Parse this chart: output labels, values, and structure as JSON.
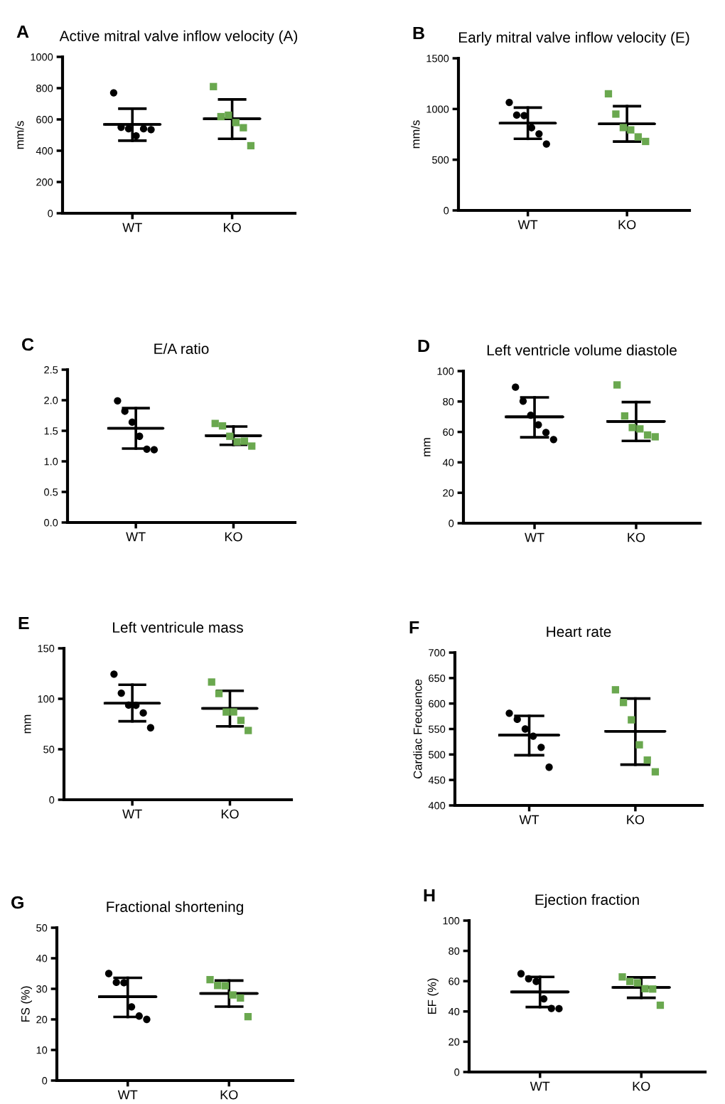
{
  "chart_data": [
    {
      "type": "scatter",
      "title": "Active mitral valve inflow velocity (A)",
      "ylabel": "mm/s",
      "annotations": [
        "A"
      ],
      "categories": [
        "WT",
        "KO"
      ],
      "ylim": [
        0,
        1000
      ],
      "yticks": [
        0,
        200,
        400,
        600,
        800,
        1000
      ],
      "legend": false,
      "series": [
        {
          "color": "#000000",
          "marker": "circle",
          "x": [
            "WT",
            "WT",
            "WT",
            "WT",
            "WT",
            "WT"
          ],
          "values": [
            770,
            550,
            540,
            495,
            540,
            535
          ]
        },
        {
          "color": "#6aa84f",
          "marker": "square",
          "x": [
            "KO",
            "KO",
            "KO",
            "KO",
            "KO",
            "KO"
          ],
          "values": [
            810,
            618,
            627,
            580,
            547,
            432
          ]
        },
        {
          "type": "box",
          "color": "#000000",
          "boxes": [
            {
              "low": 464,
              "q1": 568,
              "median": 568,
              "q3": 568,
              "high": 669
            },
            {
              "low": 476,
              "q1": 604,
              "median": 604,
              "q3": 604,
              "high": 728
            }
          ]
        }
      ]
    },
    {
      "type": "scatter",
      "title": "Early mitral valve inflow velocity (E)",
      "ylabel": "mm/s",
      "annotations": [
        "B"
      ],
      "categories": [
        "WT",
        "KO"
      ],
      "ylim": [
        0,
        1500
      ],
      "yticks": [
        0,
        500,
        1000,
        1500
      ],
      "grid": false,
      "legend": false,
      "series": [
        {
          "color": "#000000",
          "marker": "circle",
          "x": [
            "WT",
            "WT",
            "WT",
            "WT",
            "WT",
            "WT"
          ],
          "values": [
            1065,
            940,
            935,
            815,
            755,
            655
          ]
        },
        {
          "color": "#6aa84f",
          "marker": "square",
          "x": [
            "KO",
            "KO",
            "KO",
            "KO",
            "KO",
            "KO"
          ],
          "values": [
            1150,
            950,
            817,
            794,
            725,
            680
          ]
        },
        {
          "type": "box",
          "color": "#000000",
          "boxes": [
            {
              "low": 706,
              "q1": 860,
              "median": 860,
              "q3": 860,
              "high": 1014
            },
            {
              "low": 679,
              "q1": 853,
              "median": 853,
              "q3": 853,
              "high": 1028
            }
          ]
        }
      ]
    },
    {
      "type": "scatter",
      "title": "E/A ratio",
      "annotations": [
        "C"
      ],
      "categories": [
        "WT",
        "KO"
      ],
      "ylim": [
        0,
        2.5
      ],
      "yticks": [
        {
          "value": 0,
          "label": "0.0"
        },
        0.5,
        {
          "value": 1,
          "label": "1.0"
        },
        1.5,
        {
          "value": 2,
          "label": "2.0"
        },
        2.5
      ],
      "grid": false,
      "legend": false,
      "series": [
        {
          "color": "#000000",
          "marker": "circle",
          "x": [
            "WT",
            "WT",
            "WT",
            "WT",
            "WT",
            "WT"
          ],
          "values": [
            1.99,
            1.82,
            1.64,
            1.41,
            1.2,
            1.19
          ]
        },
        {
          "color": "#6aa84f",
          "marker": "square",
          "x": [
            "KO",
            "KO",
            "KO",
            "KO",
            "KO",
            "KO"
          ],
          "values": [
            1.62,
            1.58,
            1.41,
            1.32,
            1.33,
            1.25
          ]
        },
        {
          "type": "box",
          "color": "#000000",
          "boxes": [
            {
              "low": 1.21,
              "q1": 1.54,
              "median": 1.54,
              "q3": 1.54,
              "high": 1.87
            },
            {
              "low": 1.27,
              "q1": 1.42,
              "median": 1.42,
              "q3": 1.42,
              "high": 1.57
            }
          ]
        }
      ]
    },
    {
      "type": "scatter",
      "title": "Left ventricle volume diastole",
      "ylabel": "mm",
      "annotations": [
        "D"
      ],
      "categories": [
        "WT",
        "KO"
      ],
      "ylim": [
        0,
        100
      ],
      "yticks": [
        0,
        20,
        40,
        60,
        80,
        100
      ],
      "grid": false,
      "legend": false,
      "series": [
        {
          "color": "#000000",
          "marker": "circle",
          "x": [
            "WT",
            "WT",
            "WT",
            "WT",
            "WT",
            "WT"
          ],
          "values": [
            89.4,
            80.2,
            71,
            64.7,
            59.6,
            55
          ]
        },
        {
          "color": "#6aa84f",
          "marker": "square",
          "x": [
            "KO",
            "KO",
            "KO",
            "KO",
            "KO",
            "KO"
          ],
          "values": [
            90.9,
            70.5,
            62.9,
            62,
            58,
            56.8
          ]
        },
        {
          "type": "box",
          "color": "#000000",
          "boxes": [
            {
              "low": 56.5,
              "q1": 69.9,
              "median": 69.9,
              "q3": 69.9,
              "high": 82.7
            },
            {
              "low": 54.1,
              "q1": 66.9,
              "median": 66.9,
              "q3": 66.9,
              "high": 79.6
            }
          ]
        }
      ]
    },
    {
      "type": "scatter",
      "title": "Left ventricule mass",
      "ylabel": "mm",
      "annotations": [
        "E"
      ],
      "categories": [
        "WT",
        "KO"
      ],
      "ylim": [
        0,
        150
      ],
      "yticks": [
        0,
        50,
        100,
        150
      ],
      "grid": false,
      "legend": false,
      "series": [
        {
          "color": "#000000",
          "marker": "circle",
          "x": [
            "WT",
            "WT",
            "WT",
            "WT",
            "WT",
            "WT"
          ],
          "values": [
            124.4,
            105.6,
            93.7,
            93.5,
            86,
            71.3
          ]
        },
        {
          "color": "#6aa84f",
          "marker": "square",
          "x": [
            "KO",
            "KO",
            "KO",
            "KO",
            "KO",
            "KO"
          ],
          "values": [
            116.6,
            105.2,
            86.9,
            87,
            78.6,
            68.6
          ]
        },
        {
          "type": "box",
          "color": "#000000",
          "boxes": [
            {
              "low": 77.7,
              "q1": 95.6,
              "median": 95.6,
              "q3": 95.6,
              "high": 113.9
            },
            {
              "low": 72.7,
              "q1": 90.5,
              "median": 90.5,
              "q3": 90.5,
              "high": 107.9
            }
          ]
        }
      ]
    },
    {
      "type": "scatter",
      "title": "Heart rate",
      "ylabel": "Cardiac Frecuence",
      "annotations": [
        "F"
      ],
      "categories": [
        "WT",
        "KO"
      ],
      "ylim": [
        400,
        700
      ],
      "yticks": [
        400,
        450,
        500,
        550,
        600,
        650,
        700
      ],
      "grid": false,
      "legend": false,
      "series": [
        {
          "color": "#000000",
          "marker": "circle",
          "x": [
            "WT",
            "WT",
            "WT",
            "WT",
            "WT",
            "WT"
          ],
          "values": [
            581,
            569,
            550,
            536,
            514,
            475
          ]
        },
        {
          "color": "#6aa84f",
          "marker": "square",
          "x": [
            "KO",
            "KO",
            "KO",
            "KO",
            "KO",
            "KO"
          ],
          "values": [
            627,
            602,
            568,
            519,
            489,
            466
          ]
        },
        {
          "type": "box",
          "color": "#000000",
          "boxes": [
            {
              "low": 498.5,
              "q1": 538,
              "median": 538,
              "q3": 538,
              "high": 575.8
            },
            {
              "low": 480,
              "q1": 545.4,
              "median": 545.4,
              "q3": 545.4,
              "high": 609.8
            }
          ]
        }
      ]
    },
    {
      "type": "scatter",
      "title": "Fractional shortening",
      "ylabel": "FS (%)",
      "annotations": [
        "G"
      ],
      "categories": [
        "WT",
        "KO"
      ],
      "ylim": [
        0,
        50
      ],
      "yticks": [
        0,
        10,
        20,
        30,
        40,
        50
      ],
      "grid": false,
      "legend": false,
      "series": [
        {
          "color": "#000000",
          "marker": "circle",
          "x": [
            "WT",
            "WT",
            "WT",
            "WT",
            "WT",
            "WT"
          ],
          "values": [
            35,
            32.1,
            32,
            24.1,
            21.1,
            20
          ]
        },
        {
          "color": "#6aa84f",
          "marker": "square",
          "x": [
            "KO",
            "KO",
            "KO",
            "KO",
            "KO",
            "KO"
          ],
          "values": [
            33,
            31.1,
            31,
            28,
            27,
            20.9
          ]
        },
        {
          "type": "box",
          "color": "#000000",
          "boxes": [
            {
              "low": 20.8,
              "q1": 27.4,
              "median": 27.4,
              "q3": 27.4,
              "high": 33.6
            },
            {
              "low": 24.2,
              "q1": 28.5,
              "median": 28.5,
              "q3": 28.5,
              "high": 32.7
            }
          ]
        }
      ]
    },
    {
      "type": "scatter",
      "title": "Ejection fraction",
      "ylabel": "EF (%)",
      "annotations": [
        "H"
      ],
      "categories": [
        "WT",
        "KO"
      ],
      "ylim": [
        0,
        100
      ],
      "yticks": [
        0,
        20,
        40,
        60,
        80,
        100
      ],
      "grid": false,
      "legend": false,
      "series": [
        {
          "color": "#000000",
          "marker": "circle",
          "x": [
            "WT",
            "WT",
            "WT",
            "WT",
            "WT",
            "WT"
          ],
          "values": [
            64.9,
            61.6,
            59.8,
            48.3,
            42,
            41.8
          ]
        },
        {
          "color": "#6aa84f",
          "marker": "square",
          "x": [
            "KO",
            "KO",
            "KO",
            "KO",
            "KO",
            "KO"
          ],
          "values": [
            62.8,
            59.8,
            58.9,
            55,
            54.8,
            44.1
          ]
        },
        {
          "type": "box",
          "color": "#000000",
          "boxes": [
            {
              "low": 42.9,
              "q1": 52.9,
              "median": 52.9,
              "q3": 52.9,
              "high": 62.8
            },
            {
              "low": 49,
              "q1": 55.9,
              "median": 55.9,
              "q3": 55.9,
              "high": 62.5
            }
          ]
        }
      ]
    }
  ]
}
